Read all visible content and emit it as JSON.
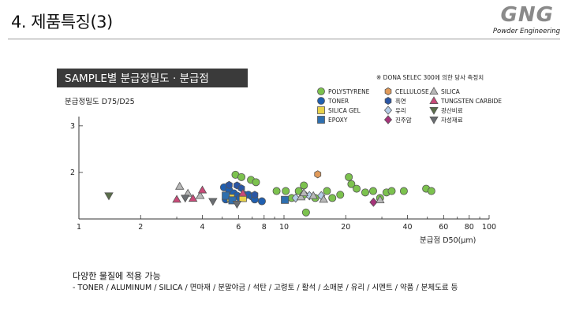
{
  "slide": {
    "title": "4. 제품특징(3)",
    "logo_text": "GNG",
    "logo_sub": "Powder Engineering",
    "caption": "다양한 물질에 적용 가능",
    "materials": "- TONER / ALUMINUM / SILICA / 면마재 / 분말야금 / 석탄 / 고령토 / 활석 / 소매분 / 유리 / 시멘트 / 약품 / 분체도료 등"
  },
  "chart_data": {
    "type": "scatter",
    "title": "SAMPLE별 분급정밀도 · 분급점",
    "note": "※ DONA SELEC 300에 의한 당사 측정치",
    "ylabel": "분급정밀도 D75/D25",
    "xlabel": "분급점 D50(μm)",
    "x_scale": "log",
    "xlim": [
      1,
      100
    ],
    "ylim": [
      1,
      3.2
    ],
    "x_ticks": [
      1,
      2,
      4,
      6,
      8,
      10,
      20,
      40,
      60,
      80,
      100
    ],
    "x_tick_labels": [
      "1",
      "2",
      "4",
      "6",
      "8",
      "10",
      "20",
      "40",
      "60",
      "80",
      "100"
    ],
    "y_ticks": [
      2,
      3
    ],
    "y_tick_labels": [
      "2",
      "3"
    ],
    "legend": [
      {
        "name": "POLYSTYRENE",
        "shape": "circle",
        "color": "#7cc24e"
      },
      {
        "name": "TONER",
        "shape": "circle",
        "color": "#1f5fb0"
      },
      {
        "name": "SILICA GEL",
        "shape": "square",
        "color": "#e8d24a"
      },
      {
        "name": "EPOXY",
        "shape": "square",
        "color": "#2f6fae"
      },
      {
        "name": "CELLULOSE",
        "shape": "hexagon",
        "color": "#e09a5a"
      },
      {
        "name": "흑연",
        "shape": "hexagon",
        "color": "#2a56a5"
      },
      {
        "name": "유리",
        "shape": "diamond",
        "color": "#b5cde8"
      },
      {
        "name": "진주암",
        "shape": "diamond",
        "color": "#a6337a"
      },
      {
        "name": "SILICA",
        "shape": "triangle-up",
        "color": "#b8b8b8"
      },
      {
        "name": "TUNGSTEN CARBIDE",
        "shape": "triangle-up",
        "color": "#c94a78"
      },
      {
        "name": "광산비료",
        "shape": "triangle-down",
        "color": "#5a6e4a"
      },
      {
        "name": "자성재료",
        "shape": "triangle-down",
        "color": "#6a6e72"
      }
    ],
    "series": [
      {
        "name": "POLYSTYRENE",
        "points": [
          [
            5.8,
            1.95
          ],
          [
            6.2,
            1.9
          ],
          [
            6.9,
            1.84
          ],
          [
            7.3,
            1.79
          ],
          [
            9.2,
            1.6
          ],
          [
            10.2,
            1.6
          ],
          [
            10.9,
            1.45
          ],
          [
            11.8,
            1.6
          ],
          [
            12.5,
            1.72
          ],
          [
            12.5,
            1.52
          ],
          [
            12.8,
            1.14
          ],
          [
            14.2,
            1.45
          ],
          [
            16.2,
            1.6
          ],
          [
            17.2,
            1.45
          ],
          [
            18.8,
            1.52
          ],
          [
            20.7,
            1.9
          ],
          [
            21.3,
            1.75
          ],
          [
            22.6,
            1.65
          ],
          [
            24.9,
            1.57
          ],
          [
            27.2,
            1.6
          ],
          [
            29.4,
            1.45
          ],
          [
            31.6,
            1.57
          ],
          [
            33.5,
            1.6
          ],
          [
            38.4,
            1.6
          ],
          [
            49.3,
            1.65
          ],
          [
            52.3,
            1.6
          ]
        ]
      },
      {
        "name": "TONER",
        "points": [
          [
            5.1,
            1.68
          ],
          [
            5.4,
            1.62
          ],
          [
            5.7,
            1.55
          ],
          [
            5.9,
            1.5
          ],
          [
            6.1,
            1.45
          ],
          [
            6.4,
            1.52
          ],
          [
            6.7,
            1.52
          ],
          [
            7.0,
            1.48
          ],
          [
            7.2,
            1.42
          ],
          [
            7.8,
            1.38
          ],
          [
            5.2,
            1.42
          ]
        ]
      },
      {
        "name": "SILICA GEL",
        "points": [
          [
            5.5,
            1.45
          ],
          [
            6.3,
            1.45
          ]
        ]
      },
      {
        "name": "EPOXY",
        "points": [
          [
            5.2,
            1.5
          ],
          [
            5.6,
            1.4
          ],
          [
            10.1,
            1.41
          ]
        ]
      },
      {
        "name": "CELLULOSE",
        "points": [
          [
            14.6,
            1.96
          ]
        ]
      },
      {
        "name": "흑연",
        "points": [
          [
            5.4,
            1.73
          ],
          [
            5.9,
            1.72
          ],
          [
            6.2,
            1.66
          ],
          [
            7.2,
            1.52
          ]
        ]
      },
      {
        "name": "유리",
        "points": [
          [
            11.4,
            1.45
          ],
          [
            13.3,
            1.5
          ],
          [
            15.2,
            1.5
          ]
        ]
      },
      {
        "name": "진주암",
        "points": [
          [
            27.3,
            1.36
          ]
        ]
      },
      {
        "name": "SILICA",
        "points": [
          [
            3.1,
            1.7
          ],
          [
            3.4,
            1.55
          ],
          [
            3.9,
            1.5
          ],
          [
            12.1,
            1.47
          ],
          [
            12.5,
            1.56
          ],
          [
            13.9,
            1.5
          ],
          [
            15.6,
            1.42
          ],
          [
            29.4,
            1.41
          ]
        ]
      },
      {
        "name": "TUNGSTEN CARBIDE",
        "points": [
          [
            3.0,
            1.42
          ],
          [
            3.6,
            1.44
          ],
          [
            4.0,
            1.62
          ],
          [
            6.3,
            1.55
          ]
        ]
      },
      {
        "name": "광산비료",
        "points": [
          [
            1.4,
            1.5
          ]
        ]
      },
      {
        "name": "자성재료",
        "points": [
          [
            3.3,
            1.45
          ],
          [
            4.5,
            1.38
          ],
          [
            5.9,
            1.32
          ]
        ]
      }
    ]
  }
}
